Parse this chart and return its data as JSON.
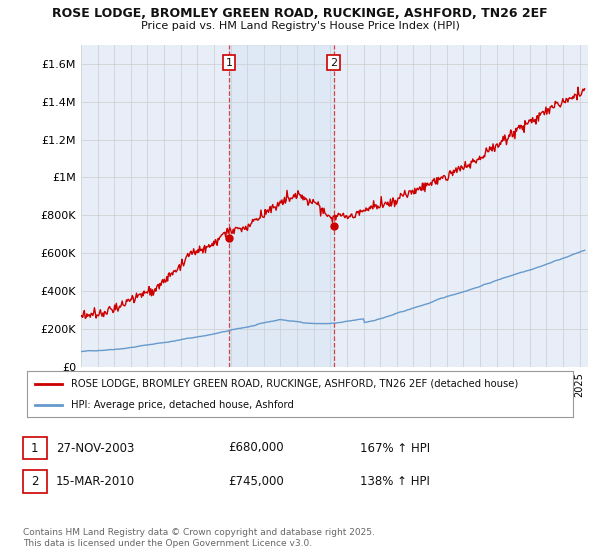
{
  "title1": "ROSE LODGE, BROMLEY GREEN ROAD, RUCKINGE, ASHFORD, TN26 2EF",
  "title2": "Price paid vs. HM Land Registry's House Price Index (HPI)",
  "background_color": "#ffffff",
  "plot_bg_color": "#e8eef8",
  "grid_color": "#cccccc",
  "ylim": [
    0,
    1700000
  ],
  "yticks": [
    0,
    200000,
    400000,
    600000,
    800000,
    1000000,
    1200000,
    1400000,
    1600000
  ],
  "ytick_labels": [
    "£0",
    "£200K",
    "£400K",
    "£600K",
    "£800K",
    "£1M",
    "£1.2M",
    "£1.4M",
    "£1.6M"
  ],
  "sale1_date": 2003.9,
  "sale1_price": 680000,
  "sale2_date": 2010.2,
  "sale2_price": 745000,
  "house_color": "#cc0000",
  "hpi_color": "#6699cc",
  "legend_house": "ROSE LODGE, BROMLEY GREEN ROAD, RUCKINGE, ASHFORD, TN26 2EF (detached house)",
  "legend_hpi": "HPI: Average price, detached house, Ashford",
  "footer": "Contains HM Land Registry data © Crown copyright and database right 2025.\nThis data is licensed under the Open Government Licence v3.0.",
  "xlim_start": 1995,
  "xlim_end": 2025.5
}
